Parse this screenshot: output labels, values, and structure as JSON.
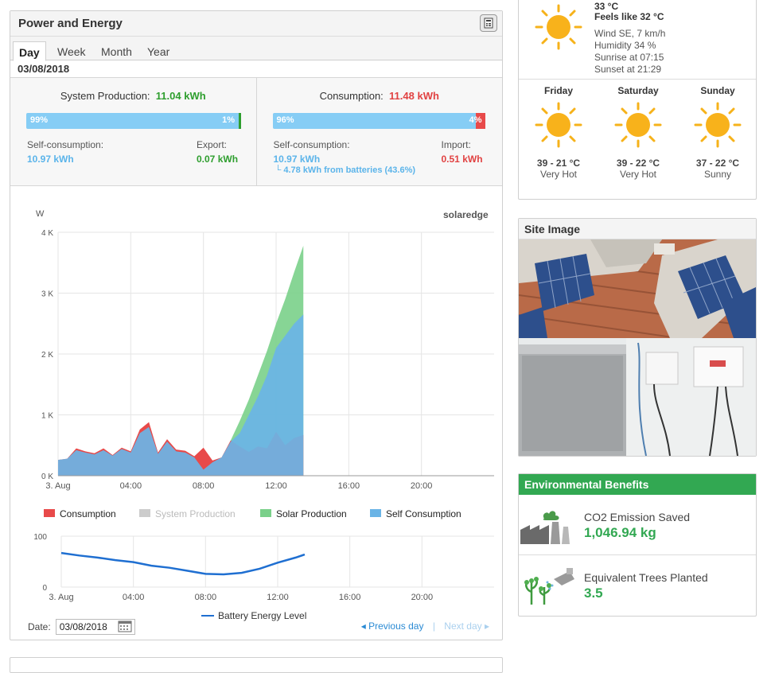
{
  "power_panel": {
    "title": "Power and Energy",
    "tabs": [
      "Day",
      "Week",
      "Month",
      "Year"
    ],
    "active_tab": "Day",
    "date": "03/08/2018"
  },
  "production": {
    "heading": "System Production:",
    "total": "11.04 kWh",
    "self_pct": "99%",
    "export_pct": "1%",
    "self_label": "Self-consumption:",
    "self_value": "10.97 kWh",
    "export_label": "Export:",
    "export_value": "0.07 kWh",
    "self_fraction": 0.99
  },
  "consumption": {
    "heading": "Consumption:",
    "total": "11.48 kWh",
    "self_pct": "96%",
    "import_pct": "4%",
    "self_label": "Self-consumption:",
    "self_value": "10.97 kWh",
    "batteries_note": "└ 4.78 kWh from batteries (43.6%)",
    "import_label": "Import:",
    "import_value": "0.51 kWh",
    "self_fraction": 0.96
  },
  "chart_data": [
    {
      "type": "area",
      "ylabel": "W",
      "brand_logo_text": "solaredge",
      "y_ticks": [
        "4 K",
        "3 K",
        "2 K",
        "1 K",
        "0 K"
      ],
      "ylim": [
        0,
        4000
      ],
      "x_ticks": [
        "3. Aug",
        "04:00",
        "08:00",
        "12:00",
        "16:00",
        "20:00"
      ],
      "x_unit": "hour",
      "xlim": [
        0,
        24
      ],
      "legend": [
        "Consumption",
        "System Production",
        "Solar Production",
        "Self Consumption"
      ],
      "colors": {
        "consumption": "#e84a4a",
        "system_production": "#cccccc",
        "solar_production": "#7ad08a",
        "self_consumption": "#6ab4e6"
      },
      "series": [
        {
          "name": "Consumption",
          "x": [
            0,
            0.5,
            1,
            1.5,
            2,
            2.5,
            3,
            3.5,
            4,
            4.5,
            5,
            5.5,
            6,
            6.5,
            7,
            7.5,
            8,
            8.5,
            9,
            9.5,
            10,
            10.5,
            11,
            11.5,
            12,
            12.5,
            13,
            13.5
          ],
          "values": [
            260,
            280,
            450,
            400,
            370,
            450,
            340,
            460,
            400,
            760,
            880,
            380,
            600,
            430,
            410,
            320,
            460,
            250,
            300,
            580,
            480,
            390,
            480,
            450,
            720,
            500,
            620,
            670
          ]
        },
        {
          "name": "Solar Production",
          "x": [
            0,
            0.5,
            1,
            1.5,
            2,
            2.5,
            3,
            3.5,
            4,
            4.5,
            5,
            5.5,
            6,
            6.5,
            7,
            7.5,
            8,
            8.5,
            9,
            9.5,
            10,
            10.5,
            11,
            11.5,
            12,
            12.5,
            13,
            13.5
          ],
          "values": [
            0,
            0,
            0,
            0,
            0,
            0,
            0,
            0,
            0,
            0,
            0,
            0,
            0,
            0,
            0,
            0,
            0,
            60,
            280,
            580,
            900,
            1250,
            1650,
            2050,
            2500,
            2900,
            3350,
            3780
          ]
        },
        {
          "name": "Self Consumption",
          "x": [
            0,
            0.5,
            1,
            1.5,
            2,
            2.5,
            3,
            3.5,
            4,
            4.5,
            5,
            5.5,
            6,
            6.5,
            7,
            7.5,
            8,
            8.5,
            9,
            9.5,
            10,
            10.5,
            11,
            11.5,
            12,
            12.5,
            13,
            13.5
          ],
          "values": [
            260,
            280,
            420,
            380,
            350,
            420,
            330,
            440,
            380,
            700,
            800,
            360,
            560,
            400,
            380,
            300,
            100,
            220,
            300,
            560,
            700,
            1000,
            1300,
            1650,
            2100,
            2300,
            2500,
            2650
          ]
        }
      ]
    },
    {
      "type": "line",
      "y_ticks": [
        "100",
        "0"
      ],
      "ylim": [
        0,
        100
      ],
      "x_ticks": [
        "3. Aug",
        "04:00",
        "08:00",
        "12:00",
        "16:00",
        "20:00"
      ],
      "x_unit": "hour",
      "xlim": [
        0,
        24
      ],
      "legend": [
        "Battery Energy Level"
      ],
      "color": "#1f6fd1",
      "series": [
        {
          "name": "Battery Energy Level",
          "x": [
            0,
            1,
            2,
            3,
            4,
            5,
            6,
            7,
            8,
            9,
            10,
            11,
            12,
            13,
            13.5
          ],
          "values": [
            67,
            62,
            58,
            53,
            49,
            42,
            38,
            32,
            26,
            25,
            28,
            36,
            48,
            58,
            64
          ]
        }
      ]
    }
  ],
  "date_picker": {
    "label": "Date:",
    "value": "03/08/2018"
  },
  "nav": {
    "previous": "◂ Previous day",
    "separator": "|",
    "next": "Next day ▸"
  },
  "weather": {
    "current_temp": "33 °C",
    "feels_like": "Feels like 32 °C",
    "wind": "Wind SE, 7 km/h",
    "humidity": "Humidity 34 %",
    "sunrise": "Sunrise at 07:15",
    "sunset": "Sunset at 21:29",
    "days": [
      {
        "name": "Friday",
        "temp": "39 - 21 °C",
        "desc": "Very Hot"
      },
      {
        "name": "Saturday",
        "temp": "39 - 22 °C",
        "desc": "Very Hot"
      },
      {
        "name": "Sunday",
        "temp": "37 - 22 °C",
        "desc": "Sunny"
      }
    ]
  },
  "site_image": {
    "title": "Site Image"
  },
  "environmental": {
    "title": "Environmental Benefits",
    "co2_label": "CO2 Emission Saved",
    "co2_value": "1,046.94 kg",
    "trees_label": "Equivalent Trees Planted",
    "trees_value": "3.5"
  }
}
